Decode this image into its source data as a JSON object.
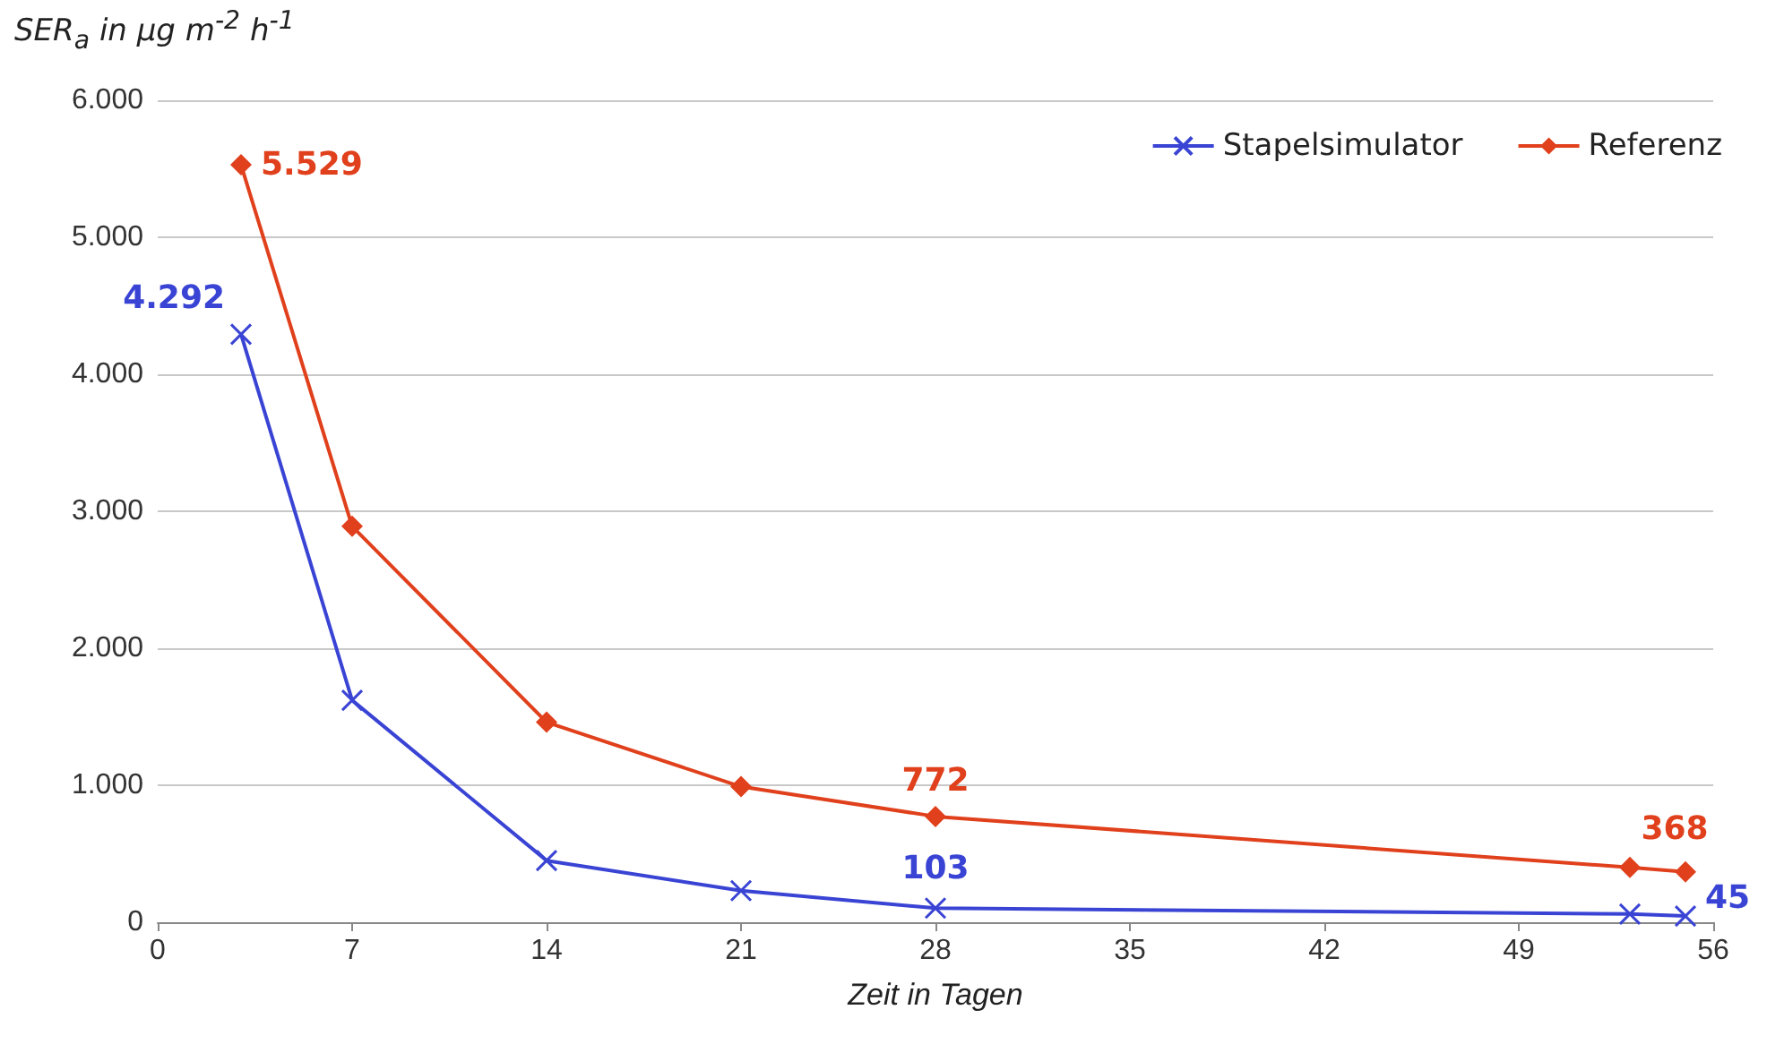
{
  "chart_data": {
    "type": "line",
    "ylabel": "SER$_{a}$ in µg m$^{-2}$ h$^{-1}$",
    "xlabel": "Zeit in Tagen",
    "x": [
      3,
      7,
      14,
      21,
      28,
      53,
      55
    ],
    "series": [
      {
        "name": "Stapelsimulator",
        "color": "#3a44d4",
        "marker": "cross",
        "values": [
          4292,
          1620,
          450,
          230,
          103,
          60,
          45
        ],
        "value_labels": [
          "4.292",
          null,
          null,
          null,
          "103",
          null,
          "45"
        ]
      },
      {
        "name": "Referenz",
        "color": "#e0401c",
        "marker": "diamond",
        "values": [
          5529,
          2890,
          1460,
          990,
          772,
          400,
          368
        ],
        "value_labels": [
          "5.529",
          null,
          null,
          null,
          "772",
          null,
          "368"
        ]
      }
    ],
    "xlim": [
      0,
      56
    ],
    "xticks": [
      0,
      7,
      14,
      21,
      28,
      35,
      42,
      49,
      56
    ],
    "ylim": [
      0,
      6000
    ],
    "yticks": [
      {
        "value": 0,
        "label": "0"
      },
      {
        "value": 1000,
        "label": "1.000"
      },
      {
        "value": 2000,
        "label": "2.000"
      },
      {
        "value": 3000,
        "label": "3.000"
      },
      {
        "value": 4000,
        "label": "4.000"
      },
      {
        "value": 5000,
        "label": "5.000"
      },
      {
        "value": 6000,
        "label": "6.000"
      }
    ],
    "grid": "y",
    "legend": "top right",
    "line_style": "solid"
  }
}
